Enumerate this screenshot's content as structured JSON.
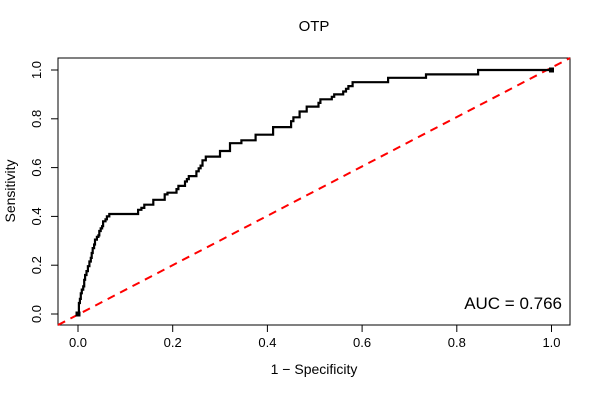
{
  "title": "OTP",
  "annotation": {
    "auc_text": "AUC = 0.766"
  },
  "colors": {
    "roc_curve": "#000000",
    "diagonal": "#ff0000",
    "box": "#000000",
    "background": "#ffffff"
  },
  "chart_data": {
    "type": "line",
    "subtype": "roc-step-curve",
    "title": "OTP",
    "xlabel": "1 − Specificity",
    "ylabel": "Sensitivity",
    "xlim": [
      0,
      1
    ],
    "ylim": [
      0,
      1
    ],
    "grid": false,
    "x_tick_labels": [
      "0.0",
      "0.2",
      "0.4",
      "0.6",
      "0.8",
      "1.0"
    ],
    "y_tick_labels": [
      "0.0",
      "0.2",
      "0.4",
      "0.6",
      "0.8",
      "1.0"
    ],
    "x_tick_values": [
      0.0,
      0.2,
      0.4,
      0.6,
      0.8,
      1.0
    ],
    "y_tick_values": [
      0.0,
      0.2,
      0.4,
      0.6,
      0.8,
      1.0
    ],
    "auc": 0.766,
    "annotation": {
      "text": "AUC = 0.766",
      "anchor": "bottom-right"
    },
    "series": [
      {
        "name": "ROC curve",
        "style": "solid-step",
        "color": "#000000",
        "line_width": 2.2,
        "end_markers": true,
        "points": [
          [
            0.0,
            0.0
          ],
          [
            0.002,
            0.045
          ],
          [
            0.004,
            0.062
          ],
          [
            0.006,
            0.085
          ],
          [
            0.008,
            0.1
          ],
          [
            0.011,
            0.113
          ],
          [
            0.013,
            0.14
          ],
          [
            0.015,
            0.16
          ],
          [
            0.018,
            0.176
          ],
          [
            0.021,
            0.196
          ],
          [
            0.024,
            0.215
          ],
          [
            0.027,
            0.23
          ],
          [
            0.029,
            0.25
          ],
          [
            0.031,
            0.27
          ],
          [
            0.034,
            0.285
          ],
          [
            0.036,
            0.305
          ],
          [
            0.04,
            0.316
          ],
          [
            0.043,
            0.322
          ],
          [
            0.045,
            0.34
          ],
          [
            0.048,
            0.351
          ],
          [
            0.051,
            0.36
          ],
          [
            0.053,
            0.38
          ],
          [
            0.058,
            0.388
          ],
          [
            0.061,
            0.4
          ],
          [
            0.066,
            0.41
          ],
          [
            0.127,
            0.427
          ],
          [
            0.134,
            0.435
          ],
          [
            0.14,
            0.448
          ],
          [
            0.159,
            0.468
          ],
          [
            0.183,
            0.49
          ],
          [
            0.189,
            0.497
          ],
          [
            0.208,
            0.512
          ],
          [
            0.212,
            0.525
          ],
          [
            0.226,
            0.543
          ],
          [
            0.23,
            0.553
          ],
          [
            0.234,
            0.565
          ],
          [
            0.25,
            0.585
          ],
          [
            0.255,
            0.597
          ],
          [
            0.259,
            0.608
          ],
          [
            0.263,
            0.63
          ],
          [
            0.27,
            0.645
          ],
          [
            0.3,
            0.668
          ],
          [
            0.321,
            0.7
          ],
          [
            0.345,
            0.712
          ],
          [
            0.375,
            0.735
          ],
          [
            0.412,
            0.766
          ],
          [
            0.45,
            0.79
          ],
          [
            0.455,
            0.806
          ],
          [
            0.468,
            0.83
          ],
          [
            0.483,
            0.85
          ],
          [
            0.508,
            0.865
          ],
          [
            0.512,
            0.88
          ],
          [
            0.536,
            0.89
          ],
          [
            0.541,
            0.9
          ],
          [
            0.56,
            0.912
          ],
          [
            0.566,
            0.923
          ],
          [
            0.571,
            0.934
          ],
          [
            0.58,
            0.95
          ],
          [
            0.655,
            0.968
          ],
          [
            0.735,
            0.982
          ],
          [
            0.845,
            1.0
          ],
          [
            1.0,
            1.0
          ]
        ]
      },
      {
        "name": "chance diagonal",
        "style": "dashed",
        "color": "#ff0000",
        "line_width": 2,
        "points": [
          [
            0,
            0
          ],
          [
            1,
            1
          ]
        ]
      }
    ]
  }
}
